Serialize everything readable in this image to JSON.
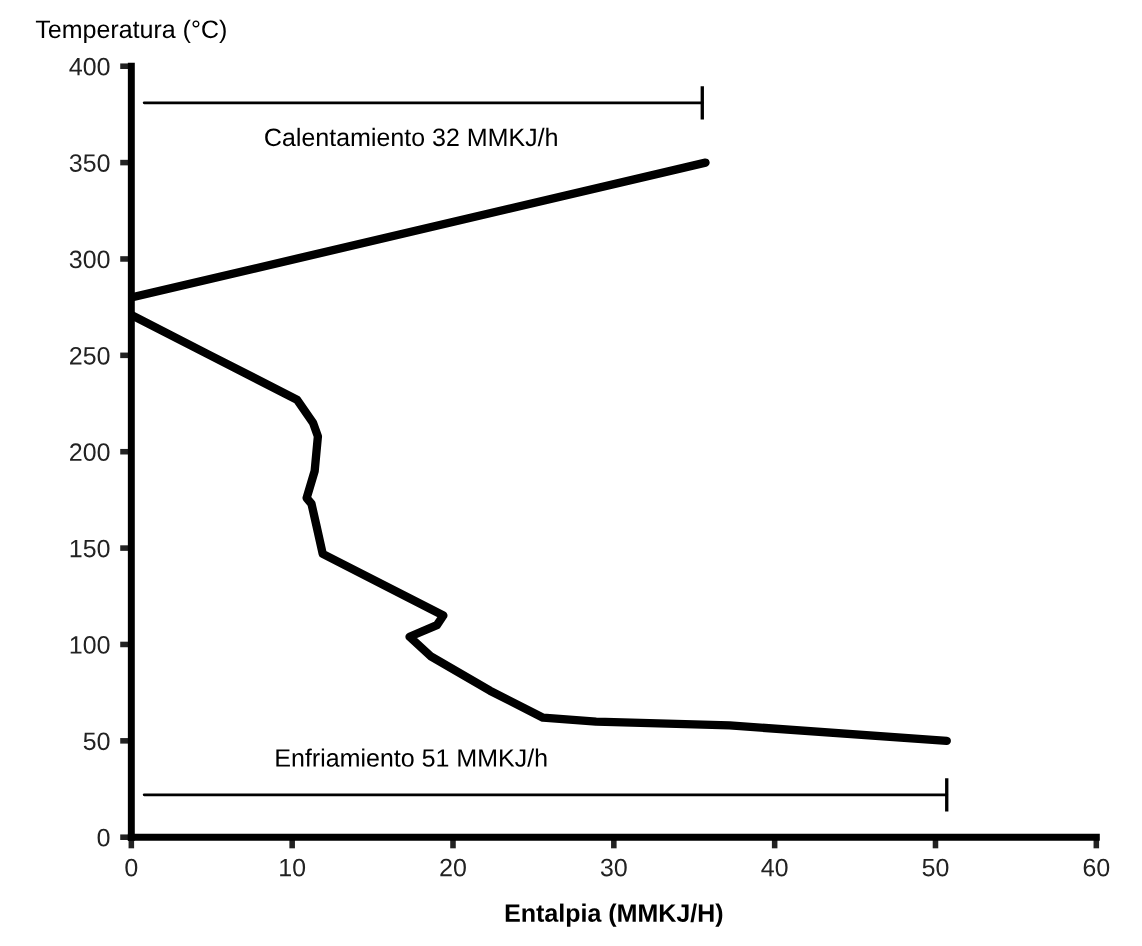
{
  "chart_data": {
    "type": "line",
    "xlabel": "Entalpia (MMKJ/H)",
    "ylabel": "Temperatura (°C)",
    "xlim": [
      0,
      60
    ],
    "ylim": [
      0,
      400
    ],
    "xticks": [
      0,
      10,
      20,
      30,
      40,
      50,
      60
    ],
    "yticks": [
      0,
      50,
      100,
      150,
      200,
      250,
      300,
      350,
      400
    ],
    "grid": false,
    "legend": false,
    "marker": "none",
    "line_style": "solid",
    "series": [
      {
        "color": "#000000",
        "x": [
          0,
          35.7
        ],
        "values": [
          280,
          350
        ]
      },
      {
        "color": "#000000",
        "x": [
          0,
          4.9,
          10.3,
          11.3,
          11.6,
          11.4,
          10.9,
          11.2,
          11.5,
          11.9,
          17.3,
          19.4,
          19.0,
          17.3,
          18.6,
          22.3,
          25.6,
          28.9,
          37.2,
          50.7
        ],
        "values": [
          271,
          250,
          227,
          215,
          208,
          190,
          176,
          173,
          162,
          147,
          124,
          115,
          110,
          104,
          94,
          76,
          62,
          60,
          58,
          50
        ]
      },
      {
        "color": "#000000",
        "x": [
          0.8,
          35.5
        ],
        "values": [
          381,
          381
        ]
      },
      {
        "color": "#000000",
        "x": [
          0.8,
          50.7
        ],
        "values": [
          22,
          22
        ]
      }
    ],
    "annotations": [
      "Calentamiento 32 MMKJ/h",
      "Enfriamiento 51 MMKJ/h"
    ]
  }
}
